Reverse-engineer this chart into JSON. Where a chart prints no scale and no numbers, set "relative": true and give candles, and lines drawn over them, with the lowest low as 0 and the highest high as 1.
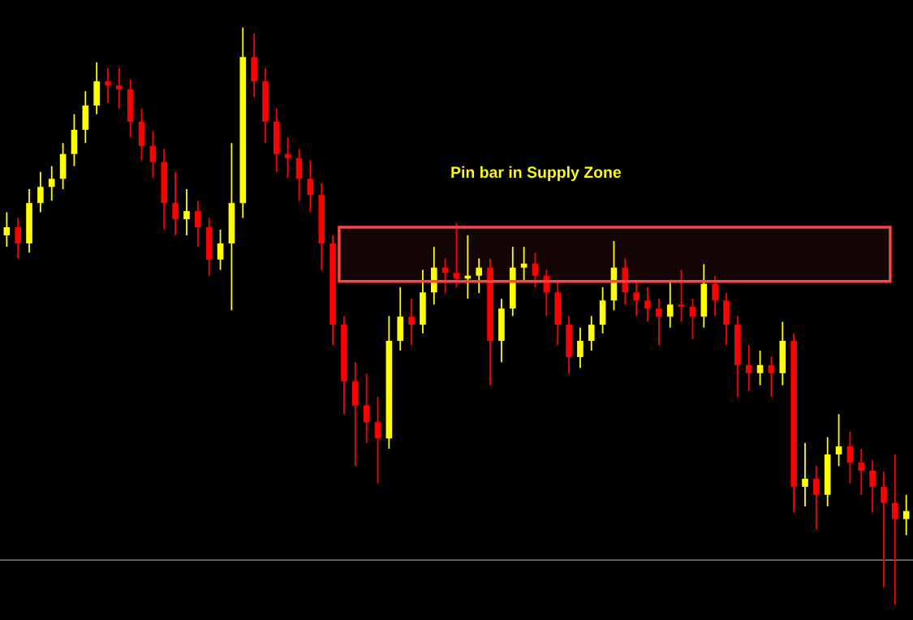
{
  "chart_data": {
    "type": "candlestick",
    "relative": true,
    "categories": [
      null,
      null,
      null,
      null,
      null,
      null,
      null,
      null,
      null,
      null,
      null,
      null,
      null,
      null,
      null,
      null,
      null,
      null,
      null,
      null,
      null,
      null,
      null,
      null,
      null,
      null,
      null,
      null,
      null,
      null,
      null,
      null,
      null,
      null,
      null,
      null,
      null,
      null,
      null,
      null,
      null,
      null,
      null,
      null,
      null,
      null,
      null,
      null,
      null,
      null,
      null,
      null,
      null,
      null,
      null,
      null,
      null,
      null,
      null,
      null,
      null,
      null,
      null,
      null,
      null,
      null,
      null,
      null,
      null,
      null,
      null,
      null,
      null,
      null,
      null,
      null,
      null,
      null,
      null,
      null,
      null
    ],
    "ohlc": [
      [
        0.64,
        0.68,
        0.62,
        0.654
      ],
      [
        0.654,
        0.67,
        0.6,
        0.626
      ],
      [
        0.626,
        0.72,
        0.61,
        0.696
      ],
      [
        0.696,
        0.75,
        0.68,
        0.724
      ],
      [
        0.724,
        0.76,
        0.7,
        0.738
      ],
      [
        0.738,
        0.8,
        0.72,
        0.781
      ],
      [
        0.781,
        0.85,
        0.76,
        0.823
      ],
      [
        0.823,
        0.89,
        0.8,
        0.865
      ],
      [
        0.865,
        0.94,
        0.85,
        0.907
      ],
      [
        0.907,
        0.93,
        0.87,
        0.9
      ],
      [
        0.9,
        0.93,
        0.86,
        0.893
      ],
      [
        0.893,
        0.91,
        0.81,
        0.837
      ],
      [
        0.837,
        0.86,
        0.77,
        0.795
      ],
      [
        0.795,
        0.82,
        0.74,
        0.767
      ],
      [
        0.767,
        0.79,
        0.65,
        0.696
      ],
      [
        0.696,
        0.75,
        0.64,
        0.668
      ],
      [
        0.668,
        0.72,
        0.64,
        0.682
      ],
      [
        0.682,
        0.7,
        0.62,
        0.654
      ],
      [
        0.654,
        0.67,
        0.57,
        0.598
      ],
      [
        0.598,
        0.65,
        0.58,
        0.626
      ],
      [
        0.626,
        0.8,
        0.51,
        0.696
      ],
      [
        0.696,
        1.0,
        0.67,
        0.949
      ],
      [
        0.949,
        0.99,
        0.88,
        0.907
      ],
      [
        0.907,
        0.93,
        0.8,
        0.837
      ],
      [
        0.837,
        0.86,
        0.75,
        0.781
      ],
      [
        0.781,
        0.81,
        0.74,
        0.774
      ],
      [
        0.774,
        0.79,
        0.7,
        0.738
      ],
      [
        0.738,
        0.77,
        0.68,
        0.71
      ],
      [
        0.71,
        0.73,
        0.58,
        0.626
      ],
      [
        0.626,
        0.64,
        0.45,
        0.485
      ],
      [
        0.485,
        0.5,
        0.33,
        0.387
      ],
      [
        0.387,
        0.42,
        0.24,
        0.345
      ],
      [
        0.345,
        0.4,
        0.28,
        0.316
      ],
      [
        0.316,
        0.36,
        0.21,
        0.288
      ],
      [
        0.288,
        0.5,
        0.27,
        0.457
      ],
      [
        0.457,
        0.55,
        0.44,
        0.499
      ],
      [
        0.499,
        0.53,
        0.45,
        0.485
      ],
      [
        0.485,
        0.58,
        0.47,
        0.541
      ],
      [
        0.541,
        0.62,
        0.52,
        0.584
      ],
      [
        0.584,
        0.6,
        0.54,
        0.575
      ],
      [
        0.575,
        0.661,
        0.55,
        0.565
      ],
      [
        0.565,
        0.64,
        0.53,
        0.57
      ],
      [
        0.57,
        0.6,
        0.54,
        0.584
      ],
      [
        0.584,
        0.6,
        0.38,
        0.457
      ],
      [
        0.457,
        0.53,
        0.42,
        0.513
      ],
      [
        0.513,
        0.62,
        0.5,
        0.584
      ],
      [
        0.584,
        0.62,
        0.56,
        0.591
      ],
      [
        0.591,
        0.61,
        0.55,
        0.57
      ],
      [
        0.57,
        0.58,
        0.5,
        0.541
      ],
      [
        0.541,
        0.56,
        0.45,
        0.485
      ],
      [
        0.485,
        0.5,
        0.4,
        0.429
      ],
      [
        0.429,
        0.48,
        0.41,
        0.457
      ],
      [
        0.457,
        0.5,
        0.44,
        0.485
      ],
      [
        0.485,
        0.55,
        0.47,
        0.527
      ],
      [
        0.527,
        0.63,
        0.51,
        0.584
      ],
      [
        0.584,
        0.6,
        0.52,
        0.541
      ],
      [
        0.541,
        0.56,
        0.5,
        0.527
      ],
      [
        0.527,
        0.55,
        0.49,
        0.513
      ],
      [
        0.513,
        0.53,
        0.45,
        0.499
      ],
      [
        0.499,
        0.56,
        0.48,
        0.52
      ],
      [
        0.52,
        0.58,
        0.49,
        0.516
      ],
      [
        0.516,
        0.53,
        0.46,
        0.499
      ],
      [
        0.499,
        0.59,
        0.48,
        0.556
      ],
      [
        0.556,
        0.57,
        0.5,
        0.527
      ],
      [
        0.527,
        0.54,
        0.45,
        0.485
      ],
      [
        0.485,
        0.5,
        0.36,
        0.415
      ],
      [
        0.415,
        0.45,
        0.37,
        0.401
      ],
      [
        0.401,
        0.44,
        0.38,
        0.415
      ],
      [
        0.415,
        0.43,
        0.36,
        0.401
      ],
      [
        0.401,
        0.49,
        0.38,
        0.457
      ],
      [
        0.457,
        0.47,
        0.16,
        0.204
      ],
      [
        0.204,
        0.28,
        0.17,
        0.218
      ],
      [
        0.218,
        0.24,
        0.13,
        0.19
      ],
      [
        0.19,
        0.29,
        0.17,
        0.26
      ],
      [
        0.26,
        0.33,
        0.24,
        0.274
      ],
      [
        0.274,
        0.3,
        0.21,
        0.246
      ],
      [
        0.246,
        0.27,
        0.19,
        0.232
      ],
      [
        0.232,
        0.25,
        0.16,
        0.204
      ],
      [
        0.204,
        0.23,
        0.03,
        0.176
      ],
      [
        0.176,
        0.26,
        0.0,
        0.148
      ],
      [
        0.148,
        0.19,
        0.12,
        0.162
      ]
    ],
    "colors": [
      "#ffff00",
      "#ff0000",
      "#ffff00",
      "#ffff00",
      "#ffff00",
      "#ffff00",
      "#ffff00",
      "#ffff00",
      "#ffff00",
      "#ff0000",
      "#ff0000",
      "#ff0000",
      "#ff0000",
      "#ff0000",
      "#ff0000",
      "#ff0000",
      "#ffff00",
      "#ff0000",
      "#ff0000",
      "#ffff00",
      "#ffff00",
      "#ffff00",
      "#ff0000",
      "#ff0000",
      "#ff0000",
      "#ff0000",
      "#ff0000",
      "#ff0000",
      "#ff0000",
      "#ff0000",
      "#ff0000",
      "#ff0000",
      "#ff0000",
      "#ff0000",
      "#ffff00",
      "#ffff00",
      "#ff0000",
      "#ffff00",
      "#ffff00",
      "#ff0000",
      "#ff0000",
      "#ffff00",
      "#ffff00",
      "#ff0000",
      "#ffff00",
      "#ffff00",
      "#ffff00",
      "#ff0000",
      "#ff0000",
      "#ff0000",
      "#ff0000",
      "#ffff00",
      "#ffff00",
      "#ffff00",
      "#ffff00",
      "#ff0000",
      "#ff0000",
      "#ff0000",
      "#ff0000",
      "#ffff00",
      "#ff0000",
      "#ff0000",
      "#ffff00",
      "#ff0000",
      "#ff0000",
      "#ff0000",
      "#ff0000",
      "#ffff00",
      "#ff0000",
      "#ffff00",
      "#ff0000",
      "#ffff00",
      "#ff0000",
      "#ffff00",
      "#ffff00",
      "#ff0000",
      "#ff0000",
      "#ff0000",
      "#ff0000",
      "#ff0000",
      "#ffff00"
    ],
    "ref_lines": [
      {
        "axis": "y",
        "value": 0.077,
        "color": "#8c9aa8"
      }
    ],
    "bands": [
      {
        "axis": "y",
        "from": 0.56,
        "to": 0.654,
        "color": "#ff4444"
      }
    ],
    "annotations": [
      "Pin bar in Supply Zone"
    ]
  }
}
